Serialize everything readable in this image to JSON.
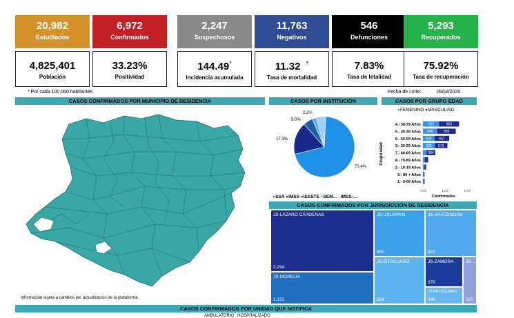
{
  "kpis": [
    {
      "value": "20,982",
      "label": "Estudiados",
      "color": "#d5912a"
    },
    {
      "value": "6,972",
      "label": "Confirmados",
      "color": "#c52027"
    },
    {
      "value": "2,247",
      "label": "Sospechosos",
      "color": "#8a8a8a"
    },
    {
      "value": "11,763",
      "label": "Negativos",
      "color": "#2f4c93"
    },
    {
      "value": "546",
      "label": "Defunciones",
      "color": "#000000"
    },
    {
      "value": "5,293",
      "label": "Recuperados",
      "color": "#27b34b"
    }
  ],
  "stats": [
    {
      "value": "4,825,401",
      "label": "Población"
    },
    {
      "value": "33.23%",
      "label": "Positividad"
    },
    {
      "value": "144.49",
      "sup": "*",
      "label": "Incidencia acumulada"
    },
    {
      "value": "11.32",
      "sup": "*",
      "label": "Tasa de mortalidad"
    },
    {
      "value": "7.83%",
      "label": "Tasa de letalidad"
    },
    {
      "value": "75.92%",
      "label": "Tasa de recuperación"
    }
  ],
  "footnote": "* Por cada 100,000 habitantes",
  "cutoff_label": "Fecha de corte:",
  "cutoff_date": "09/jul/2020",
  "headers": {
    "map": "CASOS CONFIRMADOS POR MUNICIPIO DE RESIDENCIA",
    "institution": "CASOS POR INSTITUCIÓN",
    "age": "CASOS POR GRUPO EDAD",
    "jurisdiction": "CASOS CONFIRMADOS POR JURISDICCIÓN DE RESIDENCIA",
    "unit": "CASOS CONFIRMADOS POR UNIDAD QUE NOTIFICA"
  },
  "map_note": "Información sujeta a cambios por actualización de la plataforma.",
  "map_color": "#3aa6a6",
  "bottom_legend": "AMBULATORIO   HOSPITALIZADO",
  "institution_chart": {
    "type": "pie",
    "slices": [
      {
        "name": "SSA",
        "label": "70.4%",
        "value": 70.4,
        "color": "#1e90e8"
      },
      {
        "name": "IMSS",
        "label": "17.3%",
        "value": 17.3,
        "color": "#1a2a8c"
      },
      {
        "name": "ISSSTE",
        "label": "5.0%",
        "value": 5.0,
        "color": "#1c5ea8"
      },
      {
        "name": "SEM...",
        "label": "2.2%",
        "value": 2.2,
        "color": "#5aaef0"
      },
      {
        "name": "IMSS-...",
        "label": "",
        "value": 5.1,
        "color": "#9fd0f5"
      }
    ],
    "legend": [
      "SSA",
      "IMSS",
      "ISSSTE",
      "SEM...",
      "IMSS-..."
    ]
  },
  "age_chart": {
    "type": "bar",
    "legend": [
      "FEMENINO",
      "MASCULINO"
    ],
    "ylabel": "Grupo edad",
    "xlabel": "Confirmados",
    "x_ticks": [
      "0 mil",
      "1 mil",
      "2 mil"
    ],
    "categories": [
      "4.- 30-39 Años",
      "5.- 40-49 Años",
      "6.- 50-59 Años",
      "3.- 20-29 Años",
      "7.- 60-69 Años",
      "8.- 70-89 Años",
      "2.- 10-19 Años",
      "9.- 80 + Años",
      "1.- 0-09 Años"
    ],
    "series": [
      {
        "name": "FEMENINO",
        "values": [
          732,
          649,
          532,
          536,
          170,
          85,
          70,
          30,
          35
        ],
        "labels": [
          "732",
          "649",
          "532",
          "536",
          "",
          "",
          "",
          "",
          ""
        ],
        "color": "#3d8fe0"
      },
      {
        "name": "MASCULINO",
        "values": [
          903,
          836,
          657,
          573,
          384,
          150,
          75,
          40,
          40
        ],
        "labels": [
          "903",
          "836",
          "657",
          "573",
          "384",
          "",
          "",
          "",
          ""
        ],
        "color": "#1a2a8c"
      }
    ]
  },
  "jurisdiction_chart": {
    "type": "treemap",
    "items": [
      {
        "name": "JS-LÁZARO CÁRDENAS",
        "value": "2,294",
        "color": "#1c2f8e"
      },
      {
        "name": "JS-MORELIA",
        "value": "1,131",
        "color": "#1f6ec0"
      },
      {
        "name": "JS-URUAPAN",
        "value": "850",
        "color": "#3da0ea"
      },
      {
        "name": "JS-ZITÁCUARO",
        "value": "834",
        "color": "#5db3f0"
      },
      {
        "name": "JS-APATZINGÁN",
        "value": "822",
        "color": "#52aaee"
      },
      {
        "name": "JS-ZAMORA",
        "value": "378",
        "color": "#1b3a9a"
      },
      {
        "name": "JS-PÁTZCUARO",
        "value": "346",
        "color": "#6ab8f2"
      },
      {
        "name": "JS-...",
        "value": "220",
        "color": "#8fa1d8"
      }
    ]
  }
}
